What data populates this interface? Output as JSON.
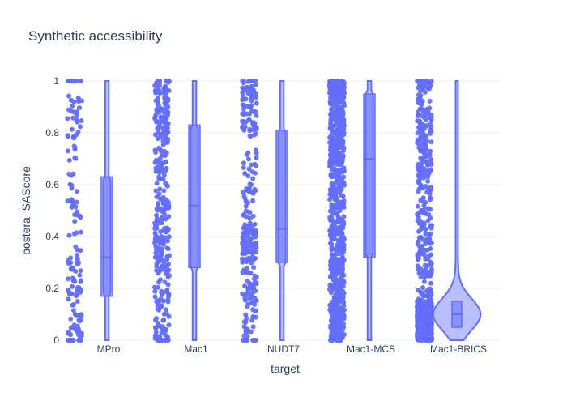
{
  "chart_data": {
    "type": "violin",
    "title": "Synthetic accessibility",
    "xlabel": "target",
    "ylabel": "postera_SAScore",
    "ylim": [
      0,
      1
    ],
    "yticks": [
      "0",
      "0.2",
      "0.4",
      "0.6",
      "0.8",
      "1"
    ],
    "ytick_values": [
      0,
      0.2,
      0.4,
      0.6,
      0.8,
      1
    ],
    "grid": true,
    "color": "#636efa",
    "categories": [
      "MPro",
      "Mac1",
      "NUDT7",
      "Mac1-MCS",
      "Mac1-BRICS"
    ],
    "series": [
      {
        "category": "MPro",
        "q1": 0.17,
        "median": 0.32,
        "q3": 0.63,
        "min": 0,
        "max": 1,
        "approx_points": 130
      },
      {
        "category": "Mac1",
        "q1": 0.28,
        "median": 0.52,
        "q3": 0.83,
        "min": 0,
        "max": 1,
        "approx_points": 330
      },
      {
        "category": "NUDT7",
        "q1": 0.3,
        "median": 0.43,
        "q3": 0.81,
        "min": 0,
        "max": 1,
        "approx_points": 260
      },
      {
        "category": "Mac1-MCS",
        "q1": 0.32,
        "median": 0.7,
        "q3": 0.95,
        "min": 0,
        "max": 1,
        "approx_points": 900
      },
      {
        "category": "Mac1-BRICS",
        "q1": 0.05,
        "median": 0.1,
        "q3": 0.15,
        "min": 0,
        "max": 1,
        "approx_points": 1200
      }
    ]
  }
}
